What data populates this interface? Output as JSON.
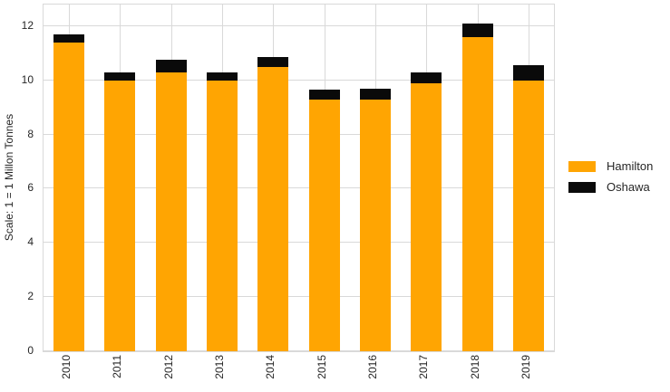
{
  "chart_data": {
    "type": "bar",
    "stacked": true,
    "title": "",
    "xlabel": "",
    "ylabel": "Scale: 1 = 1 Millon Tonnes",
    "categories": [
      "2010",
      "2011",
      "2012",
      "2013",
      "2014",
      "2015",
      "2016",
      "2017",
      "2018",
      "2019"
    ],
    "series": [
      {
        "name": "Hamilton",
        "color": "#FFA502",
        "values": [
          11.4,
          10.0,
          10.3,
          10.0,
          10.5,
          9.3,
          9.3,
          9.9,
          11.6,
          10.0
        ]
      },
      {
        "name": "Oshawa",
        "color": "#0A0A0A",
        "values": [
          0.3,
          0.3,
          0.45,
          0.3,
          0.35,
          0.35,
          0.4,
          0.4,
          0.5,
          0.55
        ]
      }
    ],
    "totals": [
      11.7,
      10.3,
      10.75,
      10.3,
      10.85,
      9.65,
      9.7,
      10.3,
      12.1,
      10.55
    ],
    "ylim": [
      0,
      12.8
    ],
    "yticks": [
      0,
      2,
      4,
      6,
      8,
      10,
      12
    ],
    "grid": true,
    "grid_color": "#D9D9D9",
    "background_color": "#FFFFFF",
    "text_color": "#262626",
    "legend_position": "right"
  }
}
